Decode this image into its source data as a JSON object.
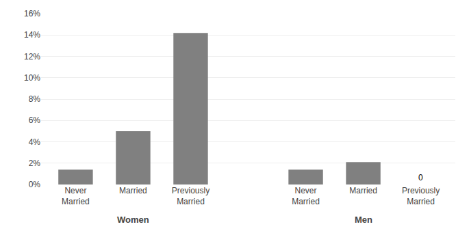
{
  "chart_data": {
    "type": "bar",
    "groups": [
      {
        "label": "Women",
        "categories": [
          "Never\nMarried",
          "Married",
          "Previously\nMarried"
        ],
        "values": [
          1.4,
          5.0,
          14.2
        ],
        "value_labels": [
          null,
          null,
          null
        ]
      },
      {
        "label": "Men",
        "categories": [
          "Never\nMarried",
          "Married",
          "Previously\nMarried"
        ],
        "values": [
          1.4,
          2.1,
          0
        ],
        "value_labels": [
          null,
          null,
          "0"
        ]
      }
    ],
    "color": "#808080",
    "ylim": [
      0,
      16
    ],
    "yticks": [
      {
        "value": 0,
        "label": "0%"
      },
      {
        "value": 2,
        "label": "2%"
      },
      {
        "value": 4,
        "label": "4%"
      },
      {
        "value": 6,
        "label": "6%"
      },
      {
        "value": 8,
        "label": "8%"
      },
      {
        "value": 10,
        "label": "10%"
      },
      {
        "value": 12,
        "label": "12%"
      },
      {
        "value": 14,
        "label": "14%"
      },
      {
        "value": 16,
        "label": "16%"
      }
    ],
    "grid": true
  }
}
